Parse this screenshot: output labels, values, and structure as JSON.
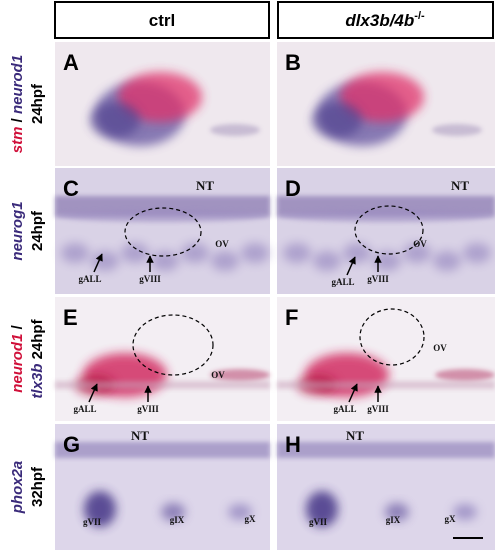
{
  "headers": [
    {
      "text": "ctrl"
    },
    {
      "text": "dlx3b/4b",
      "sup": "-/-"
    }
  ],
  "rows": [
    {
      "lines": [
        [
          {
            "text": "stm",
            "color": "#d0103a",
            "italic": true
          },
          {
            "text": " / ",
            "color": "#000",
            "italic": false
          },
          {
            "text": "neurod1",
            "color": "#3a2a7a",
            "italic": true
          }
        ],
        [
          {
            "text": "24hpf",
            "color": "#000",
            "italic": false
          }
        ]
      ]
    },
    {
      "lines": [
        [
          {
            "text": "neurog1",
            "color": "#3a2a7a",
            "italic": true
          }
        ],
        [
          {
            "text": "24hpf",
            "color": "#000",
            "italic": false
          }
        ]
      ]
    },
    {
      "lines": [
        [
          {
            "text": "neurod1",
            "color": "#d0103a",
            "italic": true
          },
          {
            "text": " /",
            "color": "#000",
            "italic": false
          }
        ],
        [
          {
            "text": "tlx3b",
            "color": "#3a2a7a",
            "italic": true
          },
          {
            "text": " 24hpf",
            "color": "#000",
            "italic": false
          }
        ]
      ]
    },
    {
      "lines": [
        [
          {
            "text": "phox2a",
            "color": "#3a2a7a",
            "italic": true
          }
        ],
        [
          {
            "text": "32hpf",
            "color": "#000",
            "italic": false
          }
        ]
      ]
    }
  ],
  "panels": [
    {
      "letter": "A",
      "annotations": []
    },
    {
      "letter": "B",
      "annotations": []
    },
    {
      "letter": "C",
      "annotations": [
        "NT",
        "OV",
        "gALL",
        "gVIII"
      ]
    },
    {
      "letter": "D",
      "annotations": [
        "NT",
        "OV",
        "gALL",
        "gVIII"
      ]
    },
    {
      "letter": "E",
      "annotations": [
        "OV",
        "gALL",
        "gVIII"
      ]
    },
    {
      "letter": "F",
      "annotations": [
        "OV",
        "gALL",
        "gVIII"
      ]
    },
    {
      "letter": "G",
      "annotations": [
        "NT",
        "gVII",
        "gIX",
        "gX"
      ]
    },
    {
      "letter": "H",
      "annotations": [
        "NT",
        "gVII",
        "gIX",
        "gX"
      ]
    }
  ]
}
